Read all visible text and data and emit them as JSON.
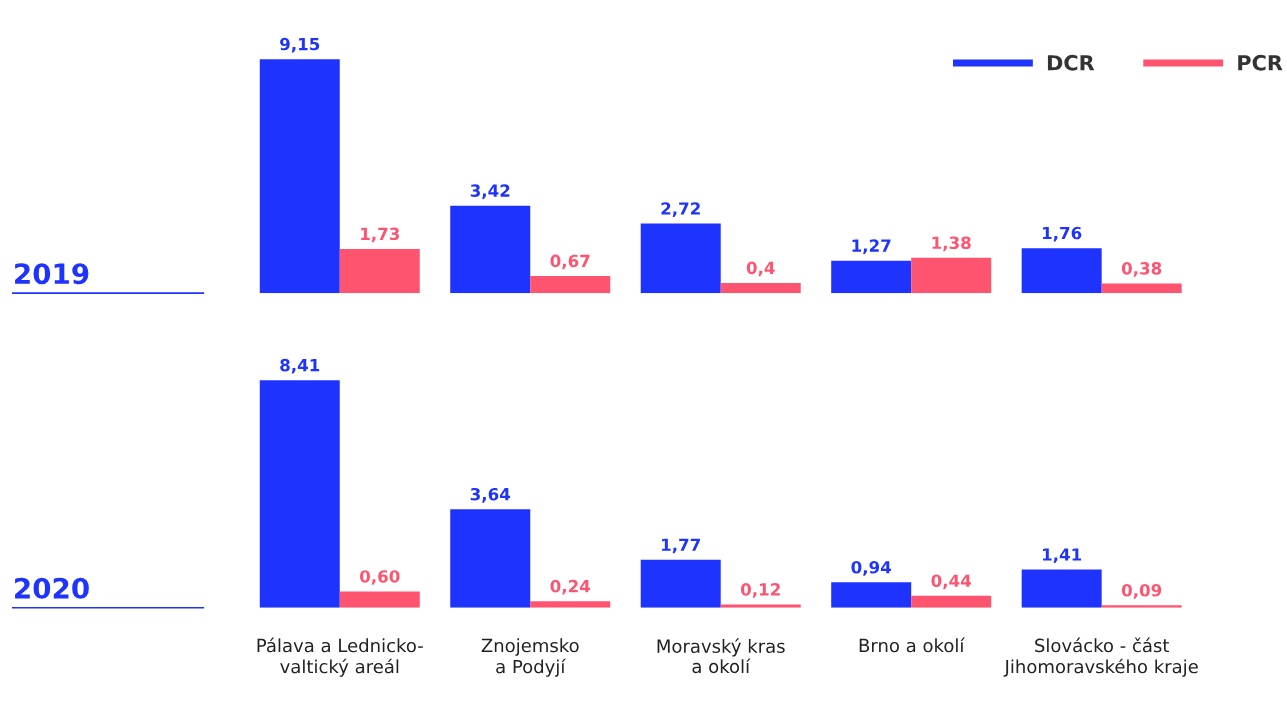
{
  "chart_data": [
    {
      "type": "bar",
      "title": "2019",
      "categories": [
        null,
        null,
        null,
        null,
        null
      ],
      "legend": "top right",
      "series": [
        {
          "name": "DCR",
          "color": "#1f33ff",
          "values": [
            9.15,
            3.42,
            2.72,
            1.27,
            1.76
          ],
          "value_labels": [
            "9,15",
            "3,42",
            "2,72",
            "1,27",
            "1,76"
          ]
        },
        {
          "name": "PCR",
          "color": "#ff5470",
          "values": [
            1.73,
            0.67,
            0.4,
            1.38,
            0.38
          ],
          "value_labels": [
            "1,73",
            "0,67",
            "0,4",
            "1,38",
            "0,38"
          ]
        }
      ]
    },
    {
      "type": "bar",
      "title": "2020",
      "categories": [
        "Pálava a Lednicko-\nvaltický areál",
        "Znojemsko\na Podyjí",
        "Moravský kras\na okolí",
        "Brno a okolí",
        "Slovácko - část\nJihomoravského kraje"
      ],
      "tick_labels": "x",
      "series": [
        {
          "color": "#1f33ff",
          "values": [
            8.41,
            3.64,
            1.77,
            0.94,
            1.41
          ],
          "value_labels": [
            "8,41",
            "3,64",
            "1,77",
            "0,94",
            "1,41"
          ]
        },
        {
          "color": "#ff5470",
          "values": [
            0.6,
            0.24,
            0.12,
            0.44,
            0.09
          ],
          "value_labels": [
            "0,60",
            "0,24",
            "0,12",
            "0,44",
            "0,09"
          ]
        }
      ]
    }
  ]
}
